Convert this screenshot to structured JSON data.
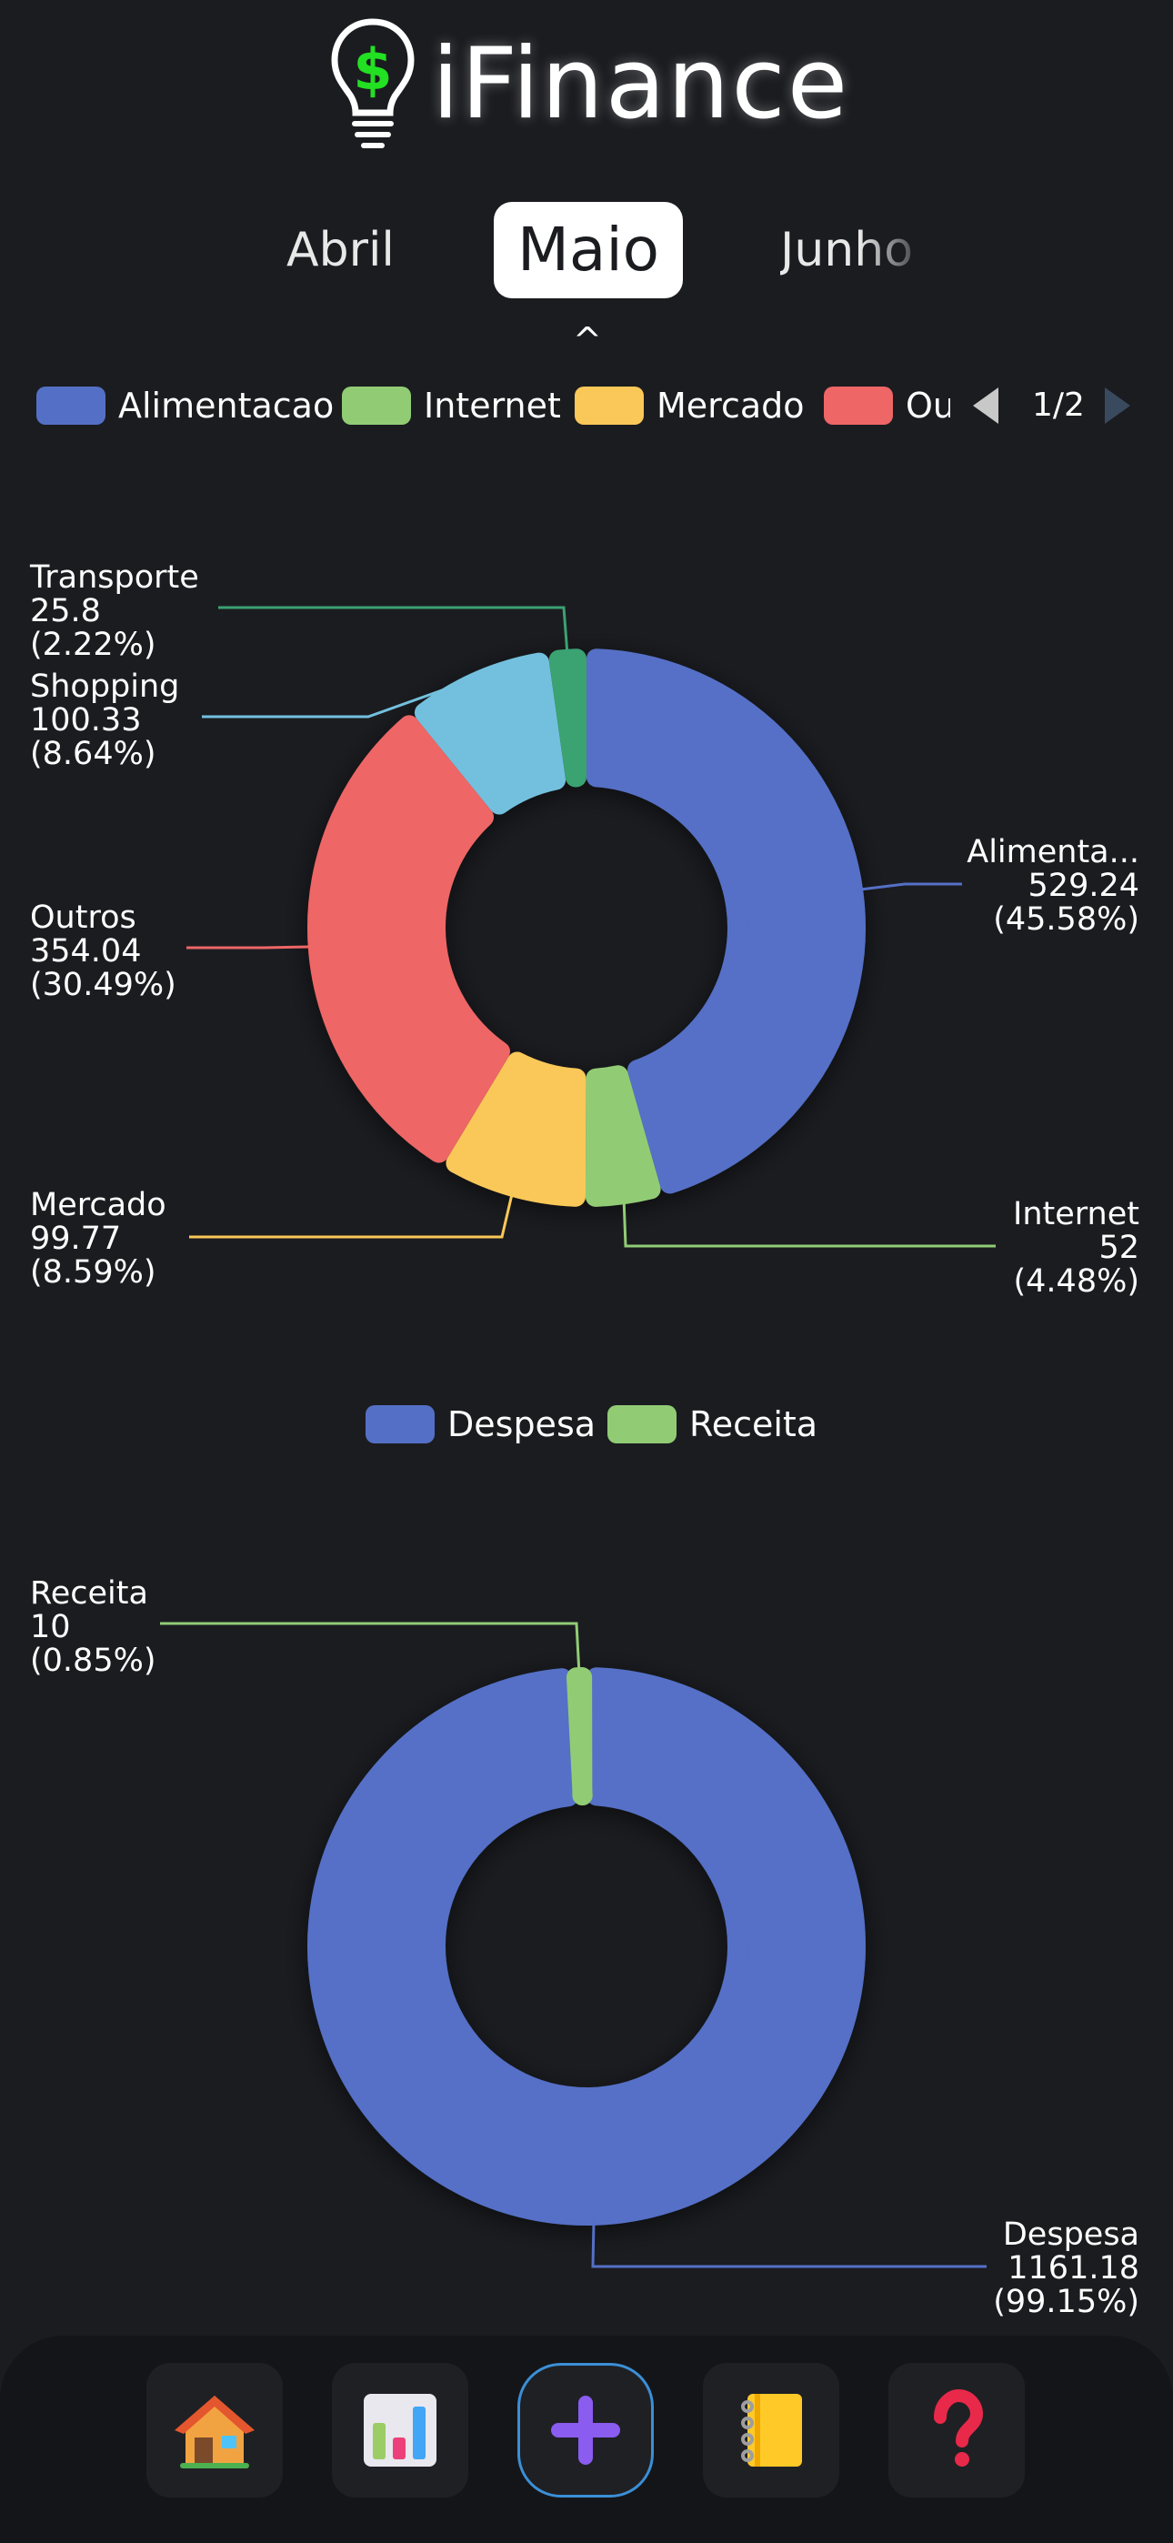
{
  "app": {
    "title": "iFinance"
  },
  "months": {
    "prev": "Abril",
    "current": "Maio",
    "next": "Junho",
    "indicator": "^"
  },
  "legend_pager": {
    "page": "1/2"
  },
  "chart_data": [
    {
      "type": "pie",
      "style": "donut",
      "title": "",
      "legend": {
        "position": "top",
        "items": [
          "Alimentacao",
          "Internet",
          "Mercado",
          "Ou"
        ]
      },
      "slices": [
        {
          "label": "Alimenta...",
          "value": 529.24,
          "percent": "(45.58%)",
          "color": "#5470c6"
        },
        {
          "label": "Internet",
          "value": 52.0,
          "percent": "(4.48%)",
          "color": "#91cc75"
        },
        {
          "label": "Mercado",
          "value": 99.77,
          "percent": "(8.59%)",
          "color": "#fac858"
        },
        {
          "label": "Outros",
          "value": 354.04,
          "percent": "(30.49%)",
          "color": "#ee6666"
        },
        {
          "label": "Shopping",
          "value": 100.33,
          "percent": "(8.64%)",
          "color": "#73c0de"
        },
        {
          "label": "Transporte",
          "value": 25.8,
          "percent": "(2.22%)",
          "color": "#3ba272"
        }
      ]
    },
    {
      "type": "pie",
      "style": "donut",
      "title": "",
      "legend": {
        "position": "top",
        "items": [
          "Despesa",
          "Receita"
        ]
      },
      "slices": [
        {
          "label": "Despesa",
          "value": 1161.18,
          "percent": "(99.15%)",
          "color": "#5470c6"
        },
        {
          "label": "Receita",
          "value": 10.0,
          "percent": "(0.85%)",
          "color": "#91cc75"
        }
      ]
    }
  ],
  "nav": {
    "items": [
      {
        "name": "home",
        "icon": "house-icon"
      },
      {
        "name": "charts",
        "icon": "bar-chart-icon"
      },
      {
        "name": "add",
        "icon": "plus-icon"
      },
      {
        "name": "notes",
        "icon": "notebook-icon"
      },
      {
        "name": "help",
        "icon": "question-mark-icon"
      }
    ]
  }
}
